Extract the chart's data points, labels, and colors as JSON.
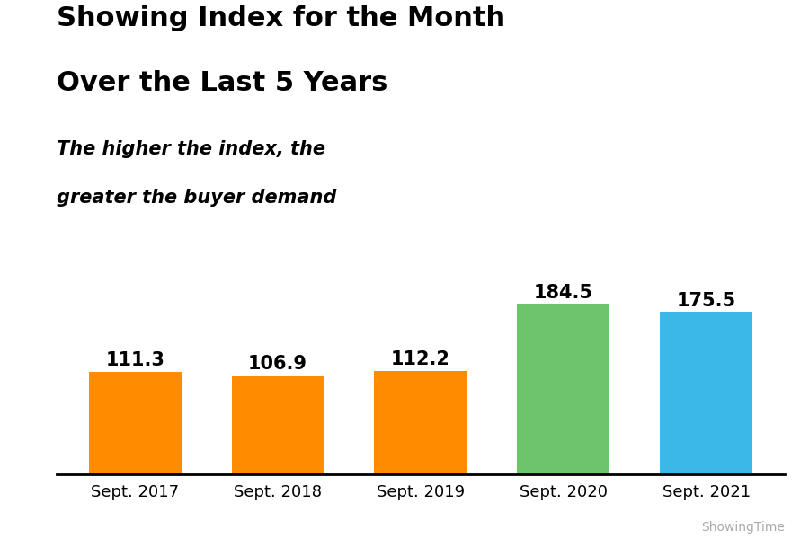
{
  "categories": [
    "Sept. 2017",
    "Sept. 2018",
    "Sept. 2019",
    "Sept. 2020",
    "Sept. 2021"
  ],
  "values": [
    111.3,
    106.9,
    112.2,
    184.5,
    175.5
  ],
  "bar_colors": [
    "#FF8C00",
    "#FF8C00",
    "#FF8C00",
    "#6DC46D",
    "#3BB8E8"
  ],
  "title_line1": "Showing Index for the Month",
  "title_line2": "Over the Last 5 Years",
  "subtitle_line1": "The higher the index, the",
  "subtitle_line2": "greater the buyer demand",
  "watermark": "ShowingTime",
  "ylim": [
    0,
    210
  ],
  "value_labels": [
    "111.3",
    "106.9",
    "112.2",
    "184.5",
    "175.5"
  ],
  "background_color": "#FFFFFF",
  "title_fontsize": 22,
  "subtitle_fontsize": 15,
  "label_fontsize": 15,
  "tick_fontsize": 13,
  "watermark_fontsize": 10
}
